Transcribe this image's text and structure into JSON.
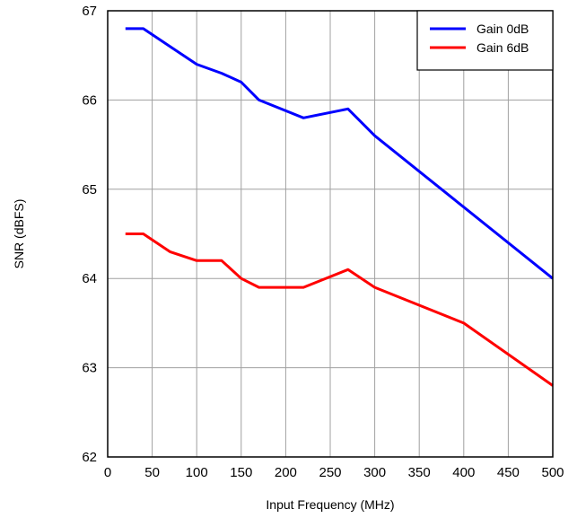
{
  "chart_data": {
    "type": "line",
    "xlabel": "Input Frequency (MHz)",
    "ylabel": "SNR (dBFS)",
    "xlim": [
      0,
      500
    ],
    "ylim": [
      62,
      67
    ],
    "x_ticks": [
      0,
      50,
      100,
      150,
      200,
      250,
      300,
      350,
      400,
      450,
      500
    ],
    "y_ticks": [
      62,
      63,
      64,
      65,
      66,
      67
    ],
    "grid": true,
    "legend_position": "top-right",
    "series": [
      {
        "name": "Gain 0dB",
        "color": "#0000ff",
        "x": [
          20,
          40,
          70,
          100,
          128,
          150,
          170,
          220,
          270,
          300,
          400,
          500
        ],
        "y": [
          66.8,
          66.8,
          66.6,
          66.4,
          66.3,
          66.2,
          66.0,
          65.8,
          65.9,
          65.6,
          64.8,
          64.0
        ]
      },
      {
        "name": "Gain 6dB",
        "color": "#ff0000",
        "x": [
          20,
          40,
          70,
          100,
          128,
          150,
          170,
          220,
          270,
          300,
          400,
          500
        ],
        "y": [
          64.5,
          64.5,
          64.3,
          64.2,
          64.2,
          64.0,
          63.9,
          63.9,
          64.1,
          63.9,
          63.5,
          62.8
        ]
      }
    ]
  }
}
